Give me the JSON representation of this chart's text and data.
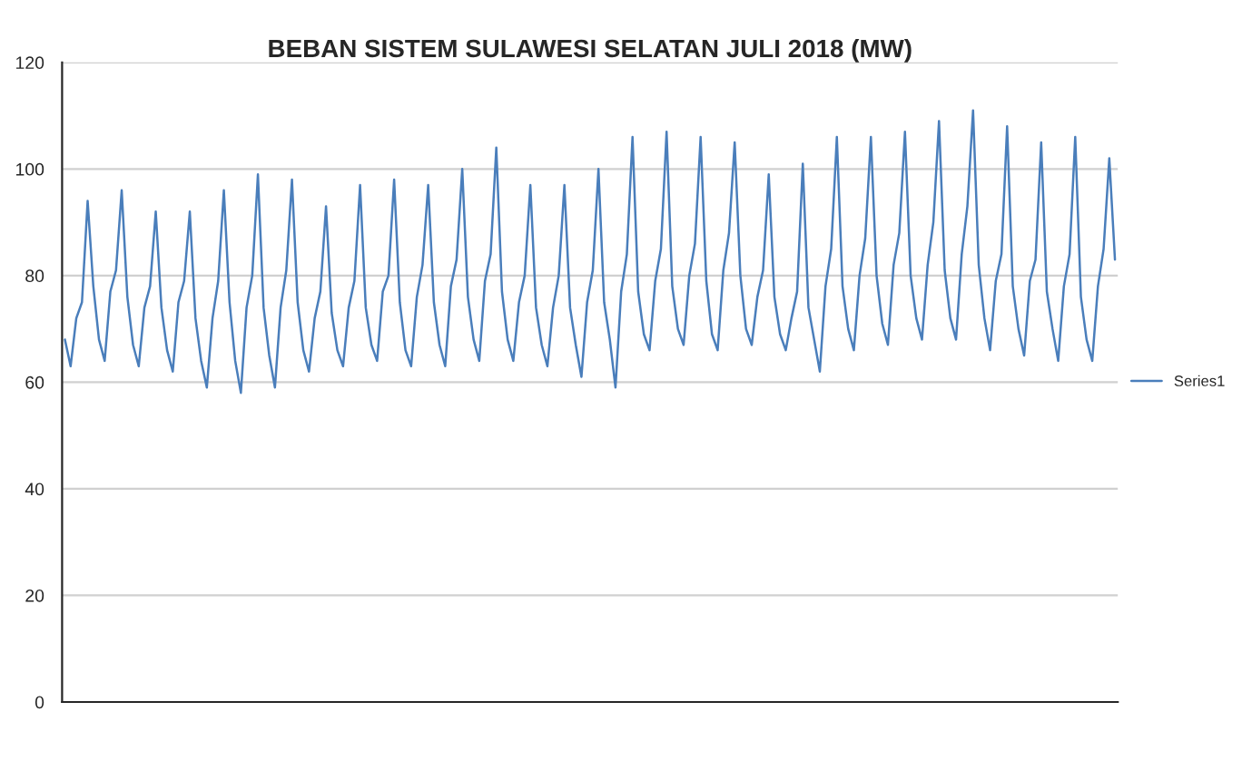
{
  "chart_data": {
    "type": "line",
    "title": "BEBAN SISTEM SULAWESI SELATAN JULI 2018 (MW)",
    "categories": [
      null,
      null,
      null,
      null,
      null,
      null,
      null,
      null,
      null,
      null,
      null,
      null,
      null,
      null,
      null,
      null,
      null,
      null,
      null,
      null,
      null,
      null,
      null,
      null,
      null,
      null,
      null,
      null,
      null,
      null,
      null,
      null,
      null,
      null,
      null,
      null,
      null,
      null,
      null,
      null,
      null,
      null,
      null,
      null,
      null,
      null,
      null,
      null,
      null,
      null,
      null,
      null,
      null,
      null,
      null,
      null,
      null,
      null,
      null,
      null,
      null,
      null,
      null,
      null,
      null,
      null,
      null,
      null,
      null,
      null,
      null,
      null,
      null,
      null,
      null,
      null,
      null,
      null,
      null,
      null,
      null,
      null,
      null,
      null,
      null,
      null,
      null,
      null,
      null,
      null,
      null,
      null,
      null,
      null,
      null,
      null,
      null,
      null,
      null,
      null,
      null,
      null,
      null,
      null,
      null,
      null,
      null,
      null,
      null,
      null,
      null,
      null,
      null,
      null,
      null,
      null,
      null,
      null,
      null,
      null,
      null,
      null,
      null,
      null,
      null,
      null,
      null,
      null,
      null,
      null,
      null,
      null,
      null,
      null,
      null,
      null,
      null,
      null,
      null,
      null,
      null,
      null,
      null,
      null,
      null,
      null,
      null,
      null,
      null,
      null,
      null,
      null,
      null,
      null,
      null,
      null,
      null,
      null,
      null,
      null,
      null,
      null,
      null,
      null,
      null,
      null,
      null,
      null,
      null,
      null,
      null,
      null,
      null,
      null,
      null,
      null,
      null,
      null,
      null,
      null,
      null,
      null,
      null,
      null,
      null,
      null
    ],
    "series": [
      {
        "name": "Series1",
        "color": "#4a7ebb",
        "values": [
          68,
          63,
          72,
          75,
          94,
          78,
          68,
          64,
          77,
          81,
          96,
          76,
          67,
          63,
          74,
          78,
          92,
          74,
          66,
          62,
          75,
          79,
          92,
          72,
          64,
          59,
          72,
          79,
          96,
          75,
          64,
          58,
          74,
          80,
          99,
          74,
          65,
          59,
          74,
          81,
          98,
          75,
          66,
          62,
          72,
          77,
          93,
          73,
          66,
          63,
          74,
          79,
          97,
          74,
          67,
          64,
          77,
          80,
          98,
          75,
          66,
          63,
          76,
          82,
          97,
          75,
          67,
          63,
          78,
          83,
          100,
          76,
          68,
          64,
          79,
          84,
          104,
          77,
          68,
          64,
          75,
          80,
          97,
          74,
          67,
          63,
          74,
          80,
          97,
          74,
          67,
          61,
          75,
          81,
          100,
          75,
          68,
          59,
          77,
          84,
          106,
          77,
          69,
          66,
          79,
          85,
          107,
          78,
          70,
          67,
          80,
          86,
          106,
          79,
          69,
          66,
          81,
          88,
          105,
          80,
          70,
          67,
          76,
          81,
          99,
          76,
          69,
          66,
          72,
          77,
          101,
          74,
          68,
          62,
          78,
          85,
          106,
          78,
          70,
          66,
          80,
          87,
          106,
          80,
          71,
          67,
          82,
          88,
          107,
          80,
          72,
          68,
          82,
          90,
          109,
          81,
          72,
          68,
          84,
          93,
          111,
          82,
          72,
          66,
          79,
          84,
          108,
          78,
          70,
          65,
          79,
          83,
          105,
          77,
          70,
          64,
          78,
          84,
          106,
          76,
          68,
          64,
          78,
          85,
          102,
          83
        ]
      }
    ],
    "ylim": [
      0,
      120
    ],
    "yticks": [
      0,
      20,
      40,
      60,
      80,
      100,
      120
    ],
    "grid": "y",
    "legend": "right",
    "marker": "none",
    "line_style": "solid"
  }
}
